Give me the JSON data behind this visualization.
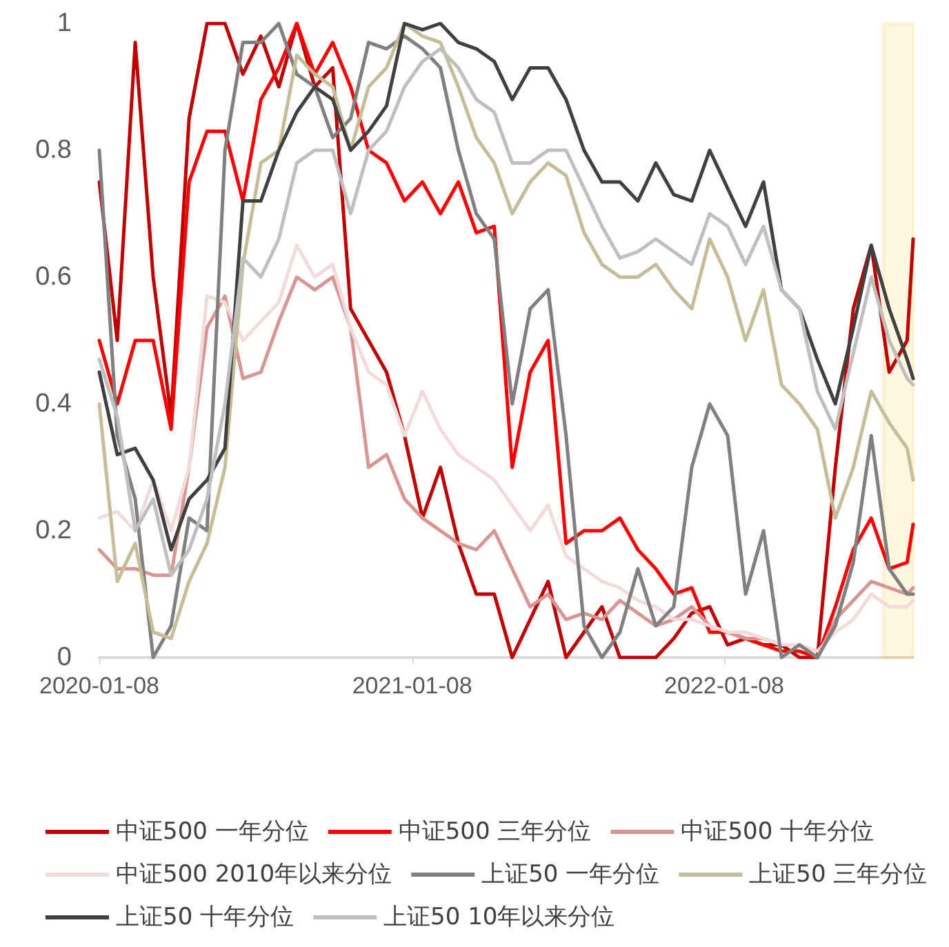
{
  "chart_data": {
    "type": "line",
    "marker": "none",
    "line_style": "solid",
    "grid": false,
    "legend": "bottom",
    "x": [
      "2020-01-08",
      "2020-01-29",
      "2020-02-19",
      "2020-03-11",
      "2020-04-01",
      "2020-04-22",
      "2020-05-13",
      "2020-06-03",
      "2020-06-24",
      "2020-07-15",
      "2020-08-05",
      "2020-08-26",
      "2020-09-16",
      "2020-10-07",
      "2020-10-28",
      "2020-11-18",
      "2020-12-09",
      "2020-12-30",
      "2021-01-20",
      "2021-02-10",
      "2021-03-03",
      "2021-03-24",
      "2021-04-14",
      "2021-05-05",
      "2021-05-26",
      "2021-06-16",
      "2021-07-07",
      "2021-07-28",
      "2021-08-18",
      "2021-09-08",
      "2021-09-29",
      "2021-10-20",
      "2021-11-10",
      "2021-12-01",
      "2021-12-22",
      "2022-01-12",
      "2022-02-02",
      "2022-02-23",
      "2022-03-16",
      "2022-04-06",
      "2022-04-27",
      "2022-05-18",
      "2022-06-08",
      "2022-06-29",
      "2022-07-20",
      "2022-08-10",
      "2022-08-17"
    ],
    "xlim": [
      "2020-01-08",
      "2022-08-17"
    ],
    "xticks": [
      "2020-01-08",
      "2021-01-08",
      "2022-01-08"
    ],
    "ylim": [
      0,
      1
    ],
    "yticks": [
      0,
      0.2,
      0.4,
      0.6,
      0.8,
      1
    ],
    "bands": [
      {
        "axis": "x",
        "from": "2022-07-13",
        "to": "2022-08-17",
        "color": "#ffc000"
      }
    ],
    "series": [
      {
        "name": "中证500 一年分位",
        "color": "#c00000",
        "values": [
          0.75,
          0.5,
          0.97,
          0.6,
          0.38,
          0.85,
          1.0,
          1.0,
          0.92,
          0.98,
          0.9,
          1.0,
          0.9,
          0.93,
          0.55,
          0.5,
          0.45,
          0.35,
          0.22,
          0.3,
          0.18,
          0.1,
          0.1,
          0.0,
          0.06,
          0.12,
          0.0,
          0.04,
          0.08,
          0.0,
          0.0,
          0.0,
          0.03,
          0.07,
          0.08,
          0.02,
          0.03,
          0.02,
          0.02,
          0.0,
          0.0,
          0.3,
          0.55,
          0.65,
          0.45,
          0.5,
          0.66
        ]
      },
      {
        "name": "中证500 三年分位",
        "color": "#ff0000",
        "values": [
          0.5,
          0.4,
          0.5,
          0.5,
          0.36,
          0.75,
          0.83,
          0.83,
          0.72,
          0.88,
          0.93,
          1.0,
          0.92,
          0.97,
          0.9,
          0.8,
          0.78,
          0.72,
          0.75,
          0.7,
          0.75,
          0.67,
          0.68,
          0.3,
          0.45,
          0.5,
          0.18,
          0.2,
          0.2,
          0.22,
          0.17,
          0.14,
          0.1,
          0.11,
          0.04,
          0.04,
          0.03,
          0.02,
          0.01,
          0.01,
          0.0,
          0.08,
          0.17,
          0.22,
          0.14,
          0.15,
          0.21
        ]
      },
      {
        "name": "中证500 十年分位",
        "color": "#d99594",
        "values": [
          0.17,
          0.14,
          0.14,
          0.13,
          0.13,
          0.3,
          0.52,
          0.57,
          0.44,
          0.45,
          0.53,
          0.6,
          0.58,
          0.6,
          0.52,
          0.3,
          0.32,
          0.25,
          0.22,
          0.2,
          0.18,
          0.17,
          0.2,
          0.14,
          0.08,
          0.1,
          0.06,
          0.07,
          0.06,
          0.09,
          0.07,
          0.05,
          0.06,
          0.08,
          0.05,
          0.04,
          0.03,
          0.03,
          0.02,
          0.02,
          0.0,
          0.06,
          0.09,
          0.12,
          0.11,
          0.1,
          0.11
        ]
      },
      {
        "name": "中证500 2010年以来分位",
        "color": "#f2dcdb",
        "values": [
          0.22,
          0.23,
          0.2,
          0.28,
          0.2,
          0.3,
          0.57,
          0.56,
          0.5,
          0.53,
          0.56,
          0.65,
          0.6,
          0.62,
          0.52,
          0.45,
          0.43,
          0.35,
          0.42,
          0.36,
          0.32,
          0.3,
          0.28,
          0.24,
          0.2,
          0.24,
          0.16,
          0.14,
          0.12,
          0.11,
          0.09,
          0.08,
          0.06,
          0.06,
          0.05,
          0.04,
          0.04,
          0.03,
          0.02,
          0.02,
          0.01,
          0.04,
          0.06,
          0.1,
          0.08,
          0.08,
          0.09
        ]
      },
      {
        "name": "上证50 一年分位",
        "color": "#808080",
        "values": [
          0.8,
          0.35,
          0.25,
          0.0,
          0.05,
          0.22,
          0.2,
          0.8,
          0.97,
          0.97,
          1.0,
          0.92,
          0.9,
          0.82,
          0.85,
          0.97,
          0.96,
          0.98,
          0.96,
          0.93,
          0.8,
          0.7,
          0.66,
          0.4,
          0.55,
          0.58,
          0.35,
          0.05,
          0.0,
          0.04,
          0.14,
          0.05,
          0.08,
          0.3,
          0.4,
          0.35,
          0.1,
          0.2,
          0.0,
          0.02,
          0.0,
          0.05,
          0.15,
          0.35,
          0.14,
          0.1,
          0.1
        ]
      },
      {
        "name": "上证50 三年分位",
        "color": "#c4bd97",
        "values": [
          0.4,
          0.12,
          0.18,
          0.04,
          0.03,
          0.12,
          0.18,
          0.3,
          0.62,
          0.78,
          0.8,
          0.95,
          0.92,
          0.9,
          0.8,
          0.9,
          0.93,
          1.0,
          0.98,
          0.97,
          0.9,
          0.82,
          0.78,
          0.7,
          0.75,
          0.78,
          0.76,
          0.67,
          0.62,
          0.6,
          0.6,
          0.62,
          0.58,
          0.55,
          0.66,
          0.6,
          0.5,
          0.58,
          0.43,
          0.4,
          0.36,
          0.22,
          0.3,
          0.42,
          0.37,
          0.33,
          0.28
        ]
      },
      {
        "name": "上证50 十年分位",
        "color": "#404040",
        "values": [
          0.45,
          0.32,
          0.33,
          0.28,
          0.17,
          0.25,
          0.28,
          0.33,
          0.72,
          0.72,
          0.8,
          0.86,
          0.9,
          0.88,
          0.8,
          0.83,
          0.87,
          1.0,
          0.99,
          1.0,
          0.97,
          0.96,
          0.94,
          0.88,
          0.93,
          0.93,
          0.88,
          0.8,
          0.75,
          0.75,
          0.72,
          0.78,
          0.73,
          0.72,
          0.8,
          0.74,
          0.68,
          0.75,
          0.58,
          0.55,
          0.47,
          0.4,
          0.52,
          0.65,
          0.55,
          0.47,
          0.44
        ]
      },
      {
        "name": "上证50 10年以来分位",
        "color": "#bfbfbf",
        "values": [
          0.47,
          0.38,
          0.2,
          0.25,
          0.13,
          0.17,
          0.25,
          0.4,
          0.63,
          0.6,
          0.66,
          0.78,
          0.8,
          0.8,
          0.7,
          0.8,
          0.83,
          0.9,
          0.94,
          0.96,
          0.93,
          0.88,
          0.86,
          0.78,
          0.78,
          0.8,
          0.8,
          0.74,
          0.68,
          0.63,
          0.64,
          0.66,
          0.64,
          0.62,
          0.7,
          0.68,
          0.62,
          0.68,
          0.58,
          0.55,
          0.42,
          0.36,
          0.48,
          0.6,
          0.5,
          0.44,
          0.43
        ]
      }
    ]
  }
}
